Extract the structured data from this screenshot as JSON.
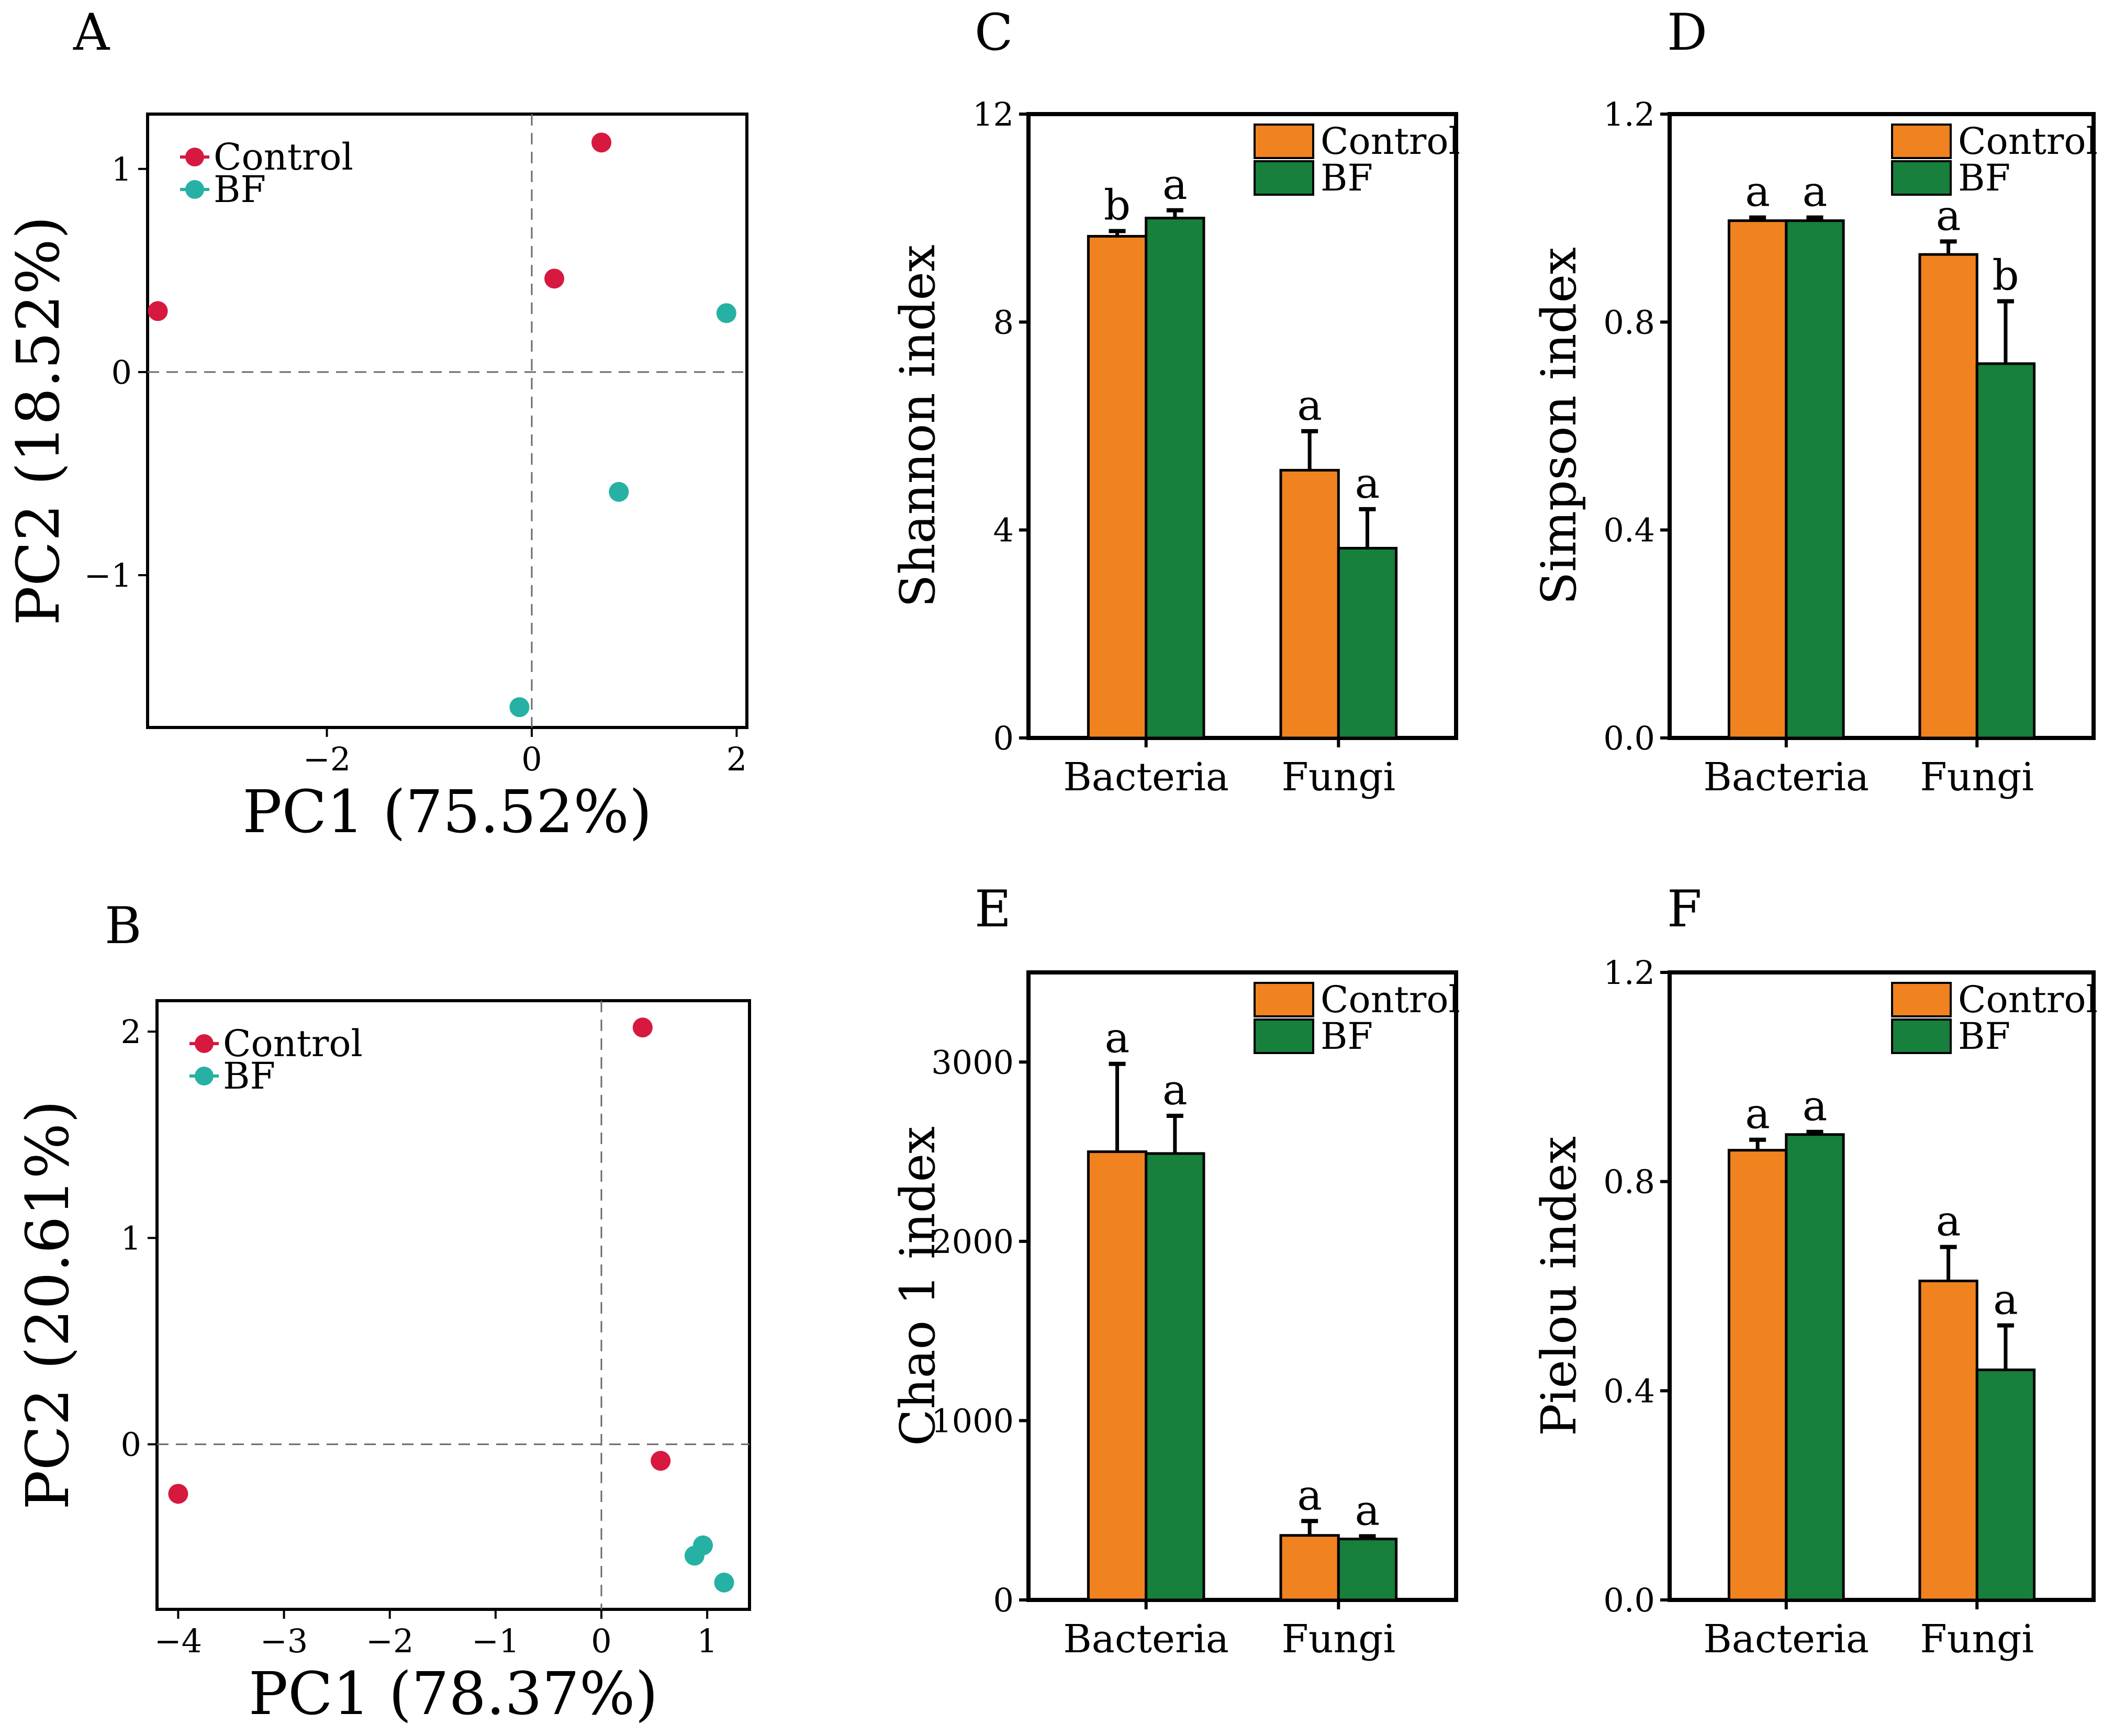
{
  "colors": {
    "control_pca": "#d7193f",
    "bf_pca": "#26b1a4",
    "control_bar": "#f08220",
    "bf_bar": "#16803c"
  },
  "chart_data": [
    {
      "panel": "A",
      "type": "scatter",
      "xlabel": "PC1 (75.52%)",
      "ylabel": "PC2 (18.52%)",
      "xlim": [
        -3.75,
        2.1
      ],
      "ylim": [
        -1.75,
        1.27
      ],
      "xticks": [
        -2,
        0,
        2
      ],
      "xtick_labels": [
        "−2",
        "0",
        "2"
      ],
      "yticks": [
        -1,
        0,
        1
      ],
      "ytick_labels": [
        "−1",
        "0",
        "1"
      ],
      "legend": [
        "Control",
        "BF"
      ],
      "legend_position": "top-left",
      "series": [
        {
          "name": "Control",
          "points": [
            [
              -3.65,
              0.3
            ],
            [
              0.22,
              0.46
            ],
            [
              0.68,
              1.13
            ]
          ]
        },
        {
          "name": "BF",
          "points": [
            [
              1.9,
              0.29
            ],
            [
              0.85,
              -0.59
            ],
            [
              -0.12,
              -1.65
            ]
          ]
        }
      ]
    },
    {
      "panel": "B",
      "type": "scatter",
      "xlabel": "PC1 (78.37%)",
      "ylabel": "PC2 (20.61%)",
      "xlim": [
        -4.2,
        1.4
      ],
      "ylim": [
        -0.8,
        2.15
      ],
      "xticks": [
        -4,
        -3,
        -2,
        -1,
        0,
        1
      ],
      "xtick_labels": [
        "−4",
        "−3",
        "−2",
        "−1",
        "0",
        "1"
      ],
      "yticks": [
        0,
        1,
        2
      ],
      "ytick_labels": [
        "0",
        "1",
        "2"
      ],
      "legend": [
        "Control",
        "BF"
      ],
      "legend_position": "top-left",
      "series": [
        {
          "name": "Control",
          "points": [
            [
              -4.0,
              -0.24
            ],
            [
              0.39,
              2.02
            ],
            [
              0.56,
              -0.08
            ]
          ]
        },
        {
          "name": "BF",
          "points": [
            [
              0.96,
              -0.49
            ],
            [
              0.88,
              -0.54
            ],
            [
              1.16,
              -0.67
            ]
          ]
        }
      ]
    },
    {
      "panel": "C",
      "type": "bar",
      "ylabel": "Shannon index",
      "categories": [
        "Bacteria",
        "Fungi"
      ],
      "ylim": [
        0,
        12
      ],
      "yticks": [
        0,
        4,
        8,
        12
      ],
      "ytick_labels": [
        "0",
        "4",
        "8",
        "12"
      ],
      "legend": [
        "Control",
        "BF"
      ],
      "legend_position": "top-right",
      "series": [
        {
          "name": "Control",
          "values": [
            9.65,
            5.15
          ],
          "errors": [
            0.1,
            0.75
          ],
          "labels": [
            "b",
            "a"
          ]
        },
        {
          "name": "BF",
          "values": [
            10.0,
            3.65
          ],
          "errors": [
            0.15,
            0.75
          ],
          "labels": [
            "a",
            "a"
          ]
        }
      ]
    },
    {
      "panel": "D",
      "type": "bar",
      "ylabel": "Simpson index",
      "categories": [
        "Bacteria",
        "Fungi"
      ],
      "ylim": [
        0,
        1.2
      ],
      "yticks": [
        0,
        0.4,
        0.8,
        1.2
      ],
      "ytick_labels": [
        "0.0",
        "0.4",
        "0.8",
        "1.2"
      ],
      "legend": [
        "Control",
        "BF"
      ],
      "legend_position": "top-right",
      "series": [
        {
          "name": "Control",
          "values": [
            0.995,
            0.93
          ],
          "errors": [
            0.006,
            0.025
          ],
          "labels": [
            "a",
            "a"
          ]
        },
        {
          "name": "BF",
          "values": [
            0.995,
            0.72
          ],
          "errors": [
            0.006,
            0.12
          ],
          "labels": [
            "a",
            "b"
          ]
        }
      ]
    },
    {
      "panel": "E",
      "type": "bar",
      "ylabel": "Chao 1 index",
      "categories": [
        "Bacteria",
        "Fungi"
      ],
      "ylim": [
        0,
        3500
      ],
      "yticks": [
        0,
        1000,
        2000,
        3000
      ],
      "ytick_labels": [
        "0",
        "1000",
        "2000",
        "3000"
      ],
      "legend": [
        "Control",
        "BF"
      ],
      "legend_position": "top-right",
      "series": [
        {
          "name": "Control",
          "values": [
            2500,
            360
          ],
          "errors": [
            490,
            80
          ],
          "labels": [
            "a",
            "a"
          ]
        },
        {
          "name": "BF",
          "values": [
            2490,
            340
          ],
          "errors": [
            210,
            15
          ],
          "labels": [
            "a",
            "a"
          ]
        }
      ]
    },
    {
      "panel": "F",
      "type": "bar",
      "ylabel": "Pielou index",
      "categories": [
        "Bacteria",
        "Fungi"
      ],
      "ylim": [
        0,
        1.2
      ],
      "yticks": [
        0,
        0.4,
        0.8,
        1.2
      ],
      "ytick_labels": [
        "0.0",
        "0.4",
        "0.8",
        "1.2"
      ],
      "legend": [
        "Control",
        "BF"
      ],
      "legend_position": "top-right",
      "series": [
        {
          "name": "Control",
          "values": [
            0.86,
            0.61
          ],
          "errors": [
            0.02,
            0.065
          ],
          "labels": [
            "a",
            "a"
          ]
        },
        {
          "name": "BF",
          "values": [
            0.89,
            0.44
          ],
          "errors": [
            0.005,
            0.085
          ],
          "labels": [
            "a",
            "a"
          ]
        }
      ]
    }
  ]
}
